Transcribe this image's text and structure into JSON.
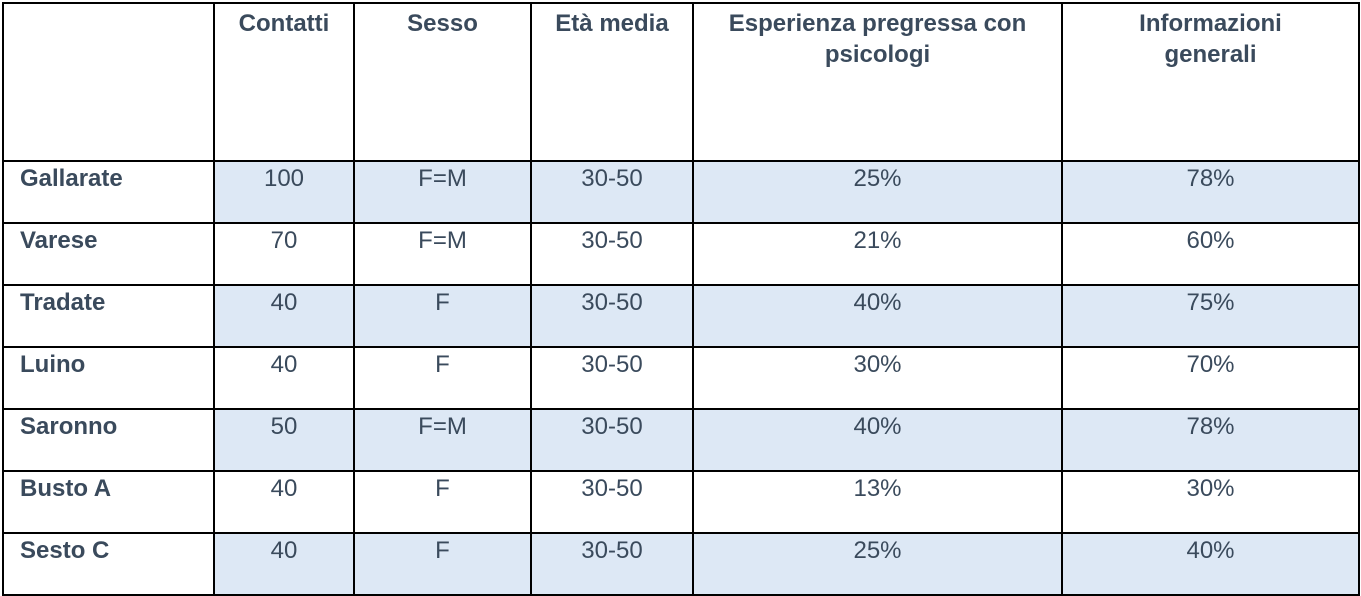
{
  "table": {
    "corner": "",
    "headers": [
      "Contatti",
      "Sesso",
      "Età media",
      "Esperienza pregressa con psicologi",
      "Informazioni generali"
    ],
    "rows": [
      {
        "city": "Gallarate",
        "cells": [
          "100",
          "F=M",
          "30-50",
          "25%",
          "78%"
        ]
      },
      {
        "city": "Varese",
        "cells": [
          "70",
          "F=M",
          "30-50",
          "21%",
          "60%"
        ]
      },
      {
        "city": "Tradate",
        "cells": [
          "40",
          "F",
          "30-50",
          "40%",
          "75%"
        ]
      },
      {
        "city": "Luino",
        "cells": [
          "40",
          "F",
          "30-50",
          "30%",
          "70%"
        ]
      },
      {
        "city": "Saronno",
        "cells": [
          "50",
          "F=M",
          "30-50",
          "40%",
          "78%"
        ]
      },
      {
        "city": "Busto A",
        "cells": [
          "40",
          "F",
          "30-50",
          "13%",
          "30%"
        ]
      },
      {
        "city": "Sesto C",
        "cells": [
          "40",
          "F",
          "30-50",
          "25%",
          "40%"
        ]
      }
    ]
  },
  "colors": {
    "shaded_row": "#dde8f5",
    "text": "#3a4a5c",
    "border": "#000000"
  }
}
